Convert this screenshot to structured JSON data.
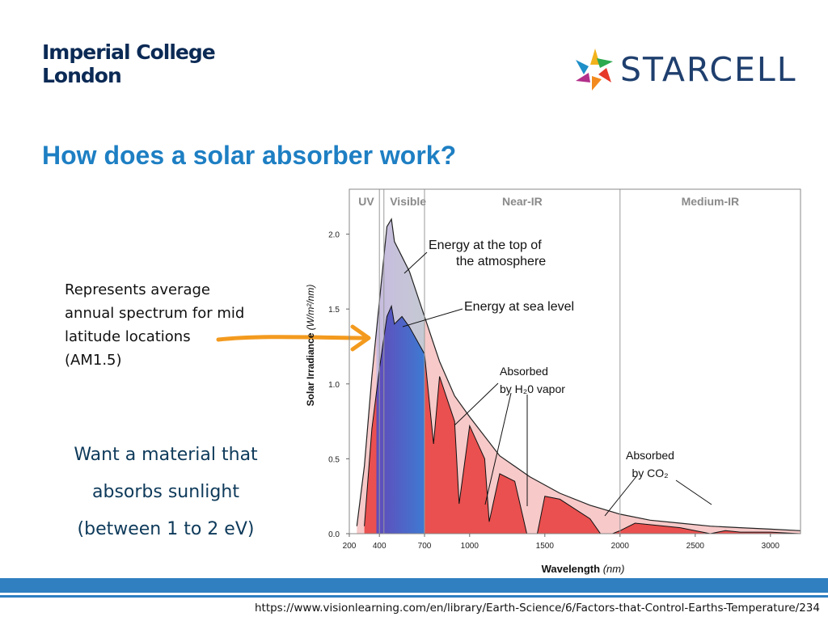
{
  "header": {
    "logo_line1": "Imperial College",
    "logo_line2": "London",
    "partner_logo_text": "STARCELL"
  },
  "slide": {
    "title": "How does a solar absorber work?",
    "note_lines": [
      "Represents average",
      "annual spectrum for mid",
      "latitude locations",
      "(AM1.5)"
    ],
    "want_lines": [
      "Want a material that",
      "absorbs sunlight",
      "(between 1 to 2 eV)"
    ],
    "source_url": "https://www.visionlearning.com/en/library/Earth-Science/6/Factors-that-Control-Earths-Temperature/234"
  },
  "colors": {
    "title": "#1e7fc3",
    "logo": "#0b2a55",
    "want_text": "#0e3a5a",
    "footer_bar": "#2f7fc1",
    "arrow": "#f39a1e",
    "top_of_atmosphere_fill": "#f7c9c9",
    "sea_level_fill": "#e9504f"
  },
  "chart_data": {
    "type": "area",
    "xlabel": "Wavelength",
    "xlabel_unit": "(nm)",
    "ylabel": "Solar Irradiance",
    "ylabel_unit": "(W/m²/nm)",
    "xlim": [
      200,
      3200
    ],
    "ylim": [
      0,
      2.3
    ],
    "x_ticks": [
      200,
      400,
      700,
      1000,
      1500,
      2000,
      2500,
      3000
    ],
    "y_ticks": [
      "0.0",
      "0.5",
      "1.0",
      "1.5",
      "2.0"
    ],
    "y_tick_values": [
      0,
      0.5,
      1.0,
      1.5,
      2.0
    ],
    "regions": [
      {
        "label": "UV",
        "start": 200,
        "end": 400
      },
      {
        "label": "Visible",
        "start": 400,
        "end": 700
      },
      {
        "label": "Near-IR",
        "start": 700,
        "end": 2000
      },
      {
        "label": "Medium-IR",
        "start": 2000,
        "end": 3200
      }
    ],
    "series": [
      {
        "name": "Energy at the top of the atmosphere",
        "x": [
          250,
          300,
          350,
          400,
          450,
          480,
          500,
          550,
          600,
          700,
          800,
          900,
          1000,
          1200,
          1400,
          1600,
          1800,
          2000,
          2200,
          2400,
          2600,
          2800,
          3000,
          3200
        ],
        "y": [
          0.05,
          0.45,
          1.05,
          1.55,
          2.05,
          2.1,
          1.95,
          1.85,
          1.75,
          1.45,
          1.15,
          0.92,
          0.78,
          0.52,
          0.38,
          0.27,
          0.19,
          0.13,
          0.09,
          0.07,
          0.05,
          0.04,
          0.03,
          0.02
        ]
      },
      {
        "name": "Energy at sea level",
        "x": [
          300,
          350,
          400,
          450,
          480,
          500,
          550,
          600,
          700,
          760,
          800,
          900,
          930,
          1000,
          1100,
          1130,
          1200,
          1300,
          1380,
          1450,
          1500,
          1600,
          1800,
          1870,
          1950,
          2000,
          2100,
          2200,
          2400,
          2600,
          2700,
          2800,
          3000,
          3200
        ],
        "y": [
          0.05,
          0.7,
          1.1,
          1.45,
          1.52,
          1.4,
          1.45,
          1.38,
          1.2,
          0.6,
          1.05,
          0.75,
          0.2,
          0.72,
          0.5,
          0.08,
          0.4,
          0.35,
          0.0,
          0.0,
          0.25,
          0.23,
          0.1,
          0.0,
          0.0,
          0.02,
          0.07,
          0.06,
          0.04,
          0.0,
          0.02,
          0.01,
          0.01,
          0.0
        ]
      }
    ],
    "annotations": [
      {
        "text_lines": [
          "Energy at the top of",
          "the atmosphere"
        ],
        "target": "Energy at the top of the atmosphere"
      },
      {
        "text_lines": [
          "Energy at sea level"
        ],
        "target": "Energy at sea level"
      },
      {
        "text_lines": [
          "Absorbed",
          "by H₂0 vapor"
        ]
      },
      {
        "text_lines": [
          "Absorbed",
          "by CO₂"
        ]
      }
    ]
  }
}
